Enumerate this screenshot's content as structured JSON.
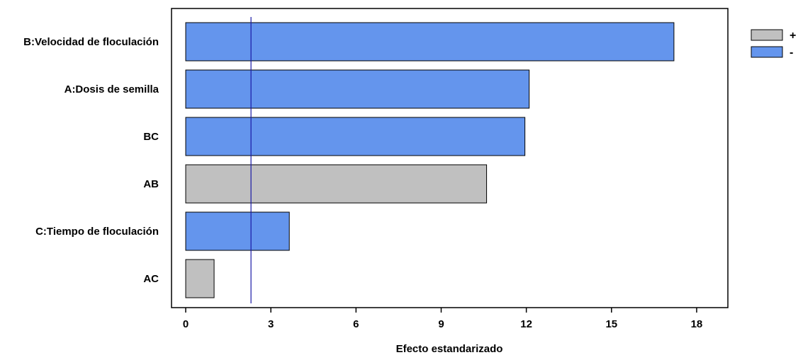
{
  "chart_data": {
    "type": "bar",
    "orientation": "horizontal",
    "title": "",
    "xlabel": "Efecto estandarizado",
    "ylabel": "",
    "categories": [
      "B:Velocidad de floculación",
      "A:Dosis de semilla",
      "BC",
      "AB",
      "C:Tiempo de floculación",
      "AC"
    ],
    "values": [
      17.2,
      12.1,
      11.95,
      10.6,
      3.65,
      1.0
    ],
    "signs": [
      "-",
      "-",
      "-",
      "+",
      "-",
      "+"
    ],
    "xlim": [
      -0.5,
      19.1
    ],
    "xticks": [
      "0",
      "3",
      "6",
      "9",
      "12",
      "15",
      "18"
    ],
    "reference_line": 2.3,
    "grid": false,
    "legend": {
      "position": "top-right",
      "entries": [
        {
          "label": "+",
          "color": "#c0c0c0"
        },
        {
          "label": "-",
          "color": "#6495ed"
        }
      ]
    },
    "colors": {
      "positive": "#c0c0c0",
      "negative": "#6495ed",
      "reference_line": "#1a1aa6"
    }
  }
}
